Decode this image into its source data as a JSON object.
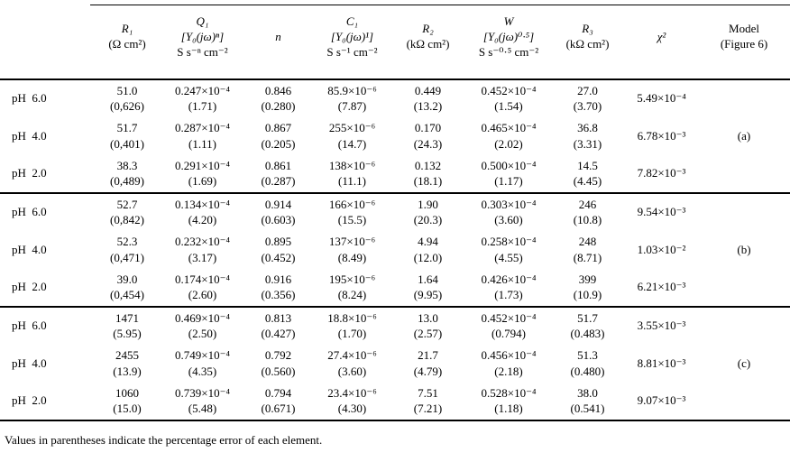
{
  "header": {
    "r1": {
      "sym": "R₁",
      "u1": "(Ω cm²)"
    },
    "q1": {
      "sym": "Q₁",
      "u1": "[Y₀(jω)ⁿ]",
      "u2": "S s⁻ⁿ cm⁻²"
    },
    "n": {
      "sym": "n"
    },
    "c1": {
      "sym": "C₁",
      "u1": "[Y₀(jω)¹]",
      "u2": "S s⁻¹ cm⁻²"
    },
    "r2": {
      "sym": "R₂",
      "u1": "(kΩ cm²)"
    },
    "w": {
      "sym": "W",
      "u1": "[Y₀(jω)⁰·⁵]",
      "u2": "S s⁻⁰·⁵ cm⁻²"
    },
    "r3": {
      "sym": "R₃",
      "u1": "(kΩ cm²)"
    },
    "chi": {
      "sym": "χ²"
    },
    "model": {
      "l1": "Model",
      "l2": "(Figure 6)"
    }
  },
  "groups": [
    {
      "model": "(a)",
      "rows": [
        {
          "ph": "pH  6.0",
          "r1": "51.0",
          "r1e": "(0,626)",
          "q1": "0.247×10⁻⁴",
          "q1e": "(1.71)",
          "n": "0.846",
          "ne": "(0.280)",
          "c1": "85.9×10⁻⁶",
          "c1e": "(7.87)",
          "r2": "0.449",
          "r2e": "(13.2)",
          "w": "0.452×10⁻⁴",
          "we": "(1.54)",
          "r3": "27.0",
          "r3e": "(3.70)",
          "chi": "5.49×10⁻⁴"
        },
        {
          "ph": "pH  4.0",
          "r1": "51.7",
          "r1e": "(0,401)",
          "q1": "0.287×10⁻⁴",
          "q1e": "(1.11)",
          "n": "0.867",
          "ne": "(0.205)",
          "c1": "255×10⁻⁶",
          "c1e": "(14.7)",
          "r2": "0.170",
          "r2e": "(24.3)",
          "w": "0.465×10⁻⁴",
          "we": "(2.02)",
          "r3": "36.8",
          "r3e": "(3.31)",
          "chi": "6.78×10⁻³"
        },
        {
          "ph": "pH  2.0",
          "r1": "38.3",
          "r1e": "(0,489)",
          "q1": "0.291×10⁻⁴",
          "q1e": "(1.69)",
          "n": "0.861",
          "ne": "(0.287)",
          "c1": "138×10⁻⁶",
          "c1e": "(11.1)",
          "r2": "0.132",
          "r2e": "(18.1)",
          "w": "0.500×10⁻⁴",
          "we": "(1.17)",
          "r3": "14.5",
          "r3e": "(4.45)",
          "chi": "7.82×10⁻³"
        }
      ]
    },
    {
      "model": "(b)",
      "rows": [
        {
          "ph": "pH  6.0",
          "r1": "52.7",
          "r1e": "(0,842)",
          "q1": "0.134×10⁻⁴",
          "q1e": "(4.20)",
          "n": "0.914",
          "ne": "(0.603)",
          "c1": "166×10⁻⁶",
          "c1e": "(15.5)",
          "r2": "1.90",
          "r2e": "(20.3)",
          "w": "0.303×10⁻⁴",
          "we": "(3.60)",
          "r3": "246",
          "r3e": "(10.8)",
          "chi": "9.54×10⁻³"
        },
        {
          "ph": "pH  4.0",
          "r1": "52.3",
          "r1e": "(0,471)",
          "q1": "0.232×10⁻⁴",
          "q1e": "(3.17)",
          "n": "0.895",
          "ne": "(0.452)",
          "c1": "137×10⁻⁶",
          "c1e": "(8.49)",
          "r2": "4.94",
          "r2e": "(12.0)",
          "w": "0.258×10⁻⁴",
          "we": "(4.55)",
          "r3": "248",
          "r3e": "(8.71)",
          "chi": "1.03×10⁻²"
        },
        {
          "ph": "pH  2.0",
          "r1": "39.0",
          "r1e": "(0,454)",
          "q1": "0.174×10⁻⁴",
          "q1e": "(2.60)",
          "n": "0.916",
          "ne": "(0.356)",
          "c1": "195×10⁻⁶",
          "c1e": "(8.24)",
          "r2": "1.64",
          "r2e": "(9.95)",
          "w": "0.426×10⁻⁴",
          "we": "(1.73)",
          "r3": "399",
          "r3e": "(10.9)",
          "chi": "6.21×10⁻³"
        }
      ]
    },
    {
      "model": "(c)",
      "rows": [
        {
          "ph": "pH  6.0",
          "r1": "1471",
          "r1e": "(5.95)",
          "q1": "0.469×10⁻⁴",
          "q1e": "(2.50)",
          "n": "0.813",
          "ne": "(0.427)",
          "c1": "18.8×10⁻⁶",
          "c1e": "(1.70)",
          "r2": "13.0",
          "r2e": "(2.57)",
          "w": "0.452×10⁻⁴",
          "we": "(0.794)",
          "r3": "51.7",
          "r3e": "(0.483)",
          "chi": "3.55×10⁻³"
        },
        {
          "ph": "pH  4.0",
          "r1": "2455",
          "r1e": "(13.9)",
          "q1": "0.749×10⁻⁴",
          "q1e": "(4.35)",
          "n": "0.792",
          "ne": "(0.560)",
          "c1": "27.4×10⁻⁶",
          "c1e": "(3.60)",
          "r2": "21.7",
          "r2e": "(4.79)",
          "w": "0.456×10⁻⁴",
          "we": "(2.18)",
          "r3": "51.3",
          "r3e": "(0.480)",
          "chi": "8.81×10⁻³"
        },
        {
          "ph": "pH  2.0",
          "r1": "1060",
          "r1e": "(15.0)",
          "q1": "0.739×10⁻⁴",
          "q1e": "(5.48)",
          "n": "0.794",
          "ne": "(0.671)",
          "c1": "23.4×10⁻⁶",
          "c1e": "(4.30)",
          "r2": "7.51",
          "r2e": "(7.21)",
          "w": "0.528×10⁻⁴",
          "we": "(1.18)",
          "r3": "38.0",
          "r3e": "(0.541)",
          "chi": "9.07×10⁻³"
        }
      ]
    }
  ],
  "footer": {
    "note": "Values in parentheses indicate the percentage error of each element."
  }
}
